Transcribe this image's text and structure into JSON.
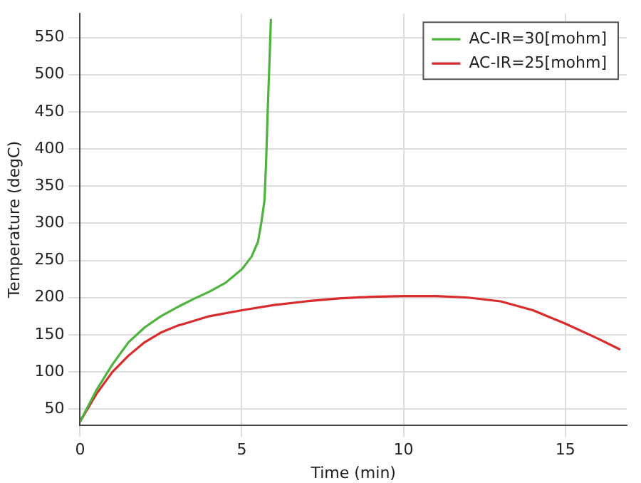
{
  "chart_data": {
    "type": "line",
    "xlabel": "Time (min)",
    "ylabel": "Temperature (degC)",
    "xlim": [
      0,
      16.9
    ],
    "xticks": [
      0,
      5,
      10,
      15
    ],
    "ylim": [
      28,
      582
    ],
    "yticks": [
      50,
      100,
      150,
      200,
      250,
      300,
      350,
      400,
      450,
      500,
      550
    ],
    "grid": true,
    "legend": "top right",
    "marker": "none",
    "line_style": "solid",
    "series": [
      {
        "name": "AC-IR=30[mohm]",
        "color": "#4db33d",
        "x": [
          0,
          0.5,
          1,
          1.5,
          2,
          2.5,
          3,
          3.5,
          4,
          4.5,
          5,
          5.3,
          5.5,
          5.6,
          5.7,
          5.75,
          5.8,
          5.85,
          5.9
        ],
        "values": [
          33,
          75,
          110,
          140,
          160,
          175,
          187,
          198,
          208,
          220,
          238,
          255,
          275,
          300,
          330,
          380,
          450,
          510,
          575
        ]
      },
      {
        "name": "AC-IR=25[mohm]",
        "color": "#d92b2b",
        "x": [
          0,
          0.5,
          1,
          1.5,
          2,
          2.5,
          3,
          4,
          5,
          6,
          7,
          8,
          9,
          10,
          11,
          12,
          13,
          14,
          15,
          16,
          16.7
        ],
        "values": [
          33,
          70,
          100,
          122,
          140,
          153,
          162,
          175,
          183,
          190,
          195,
          199,
          201,
          202,
          202,
          200,
          195,
          183,
          165,
          145,
          130
        ]
      }
    ]
  }
}
